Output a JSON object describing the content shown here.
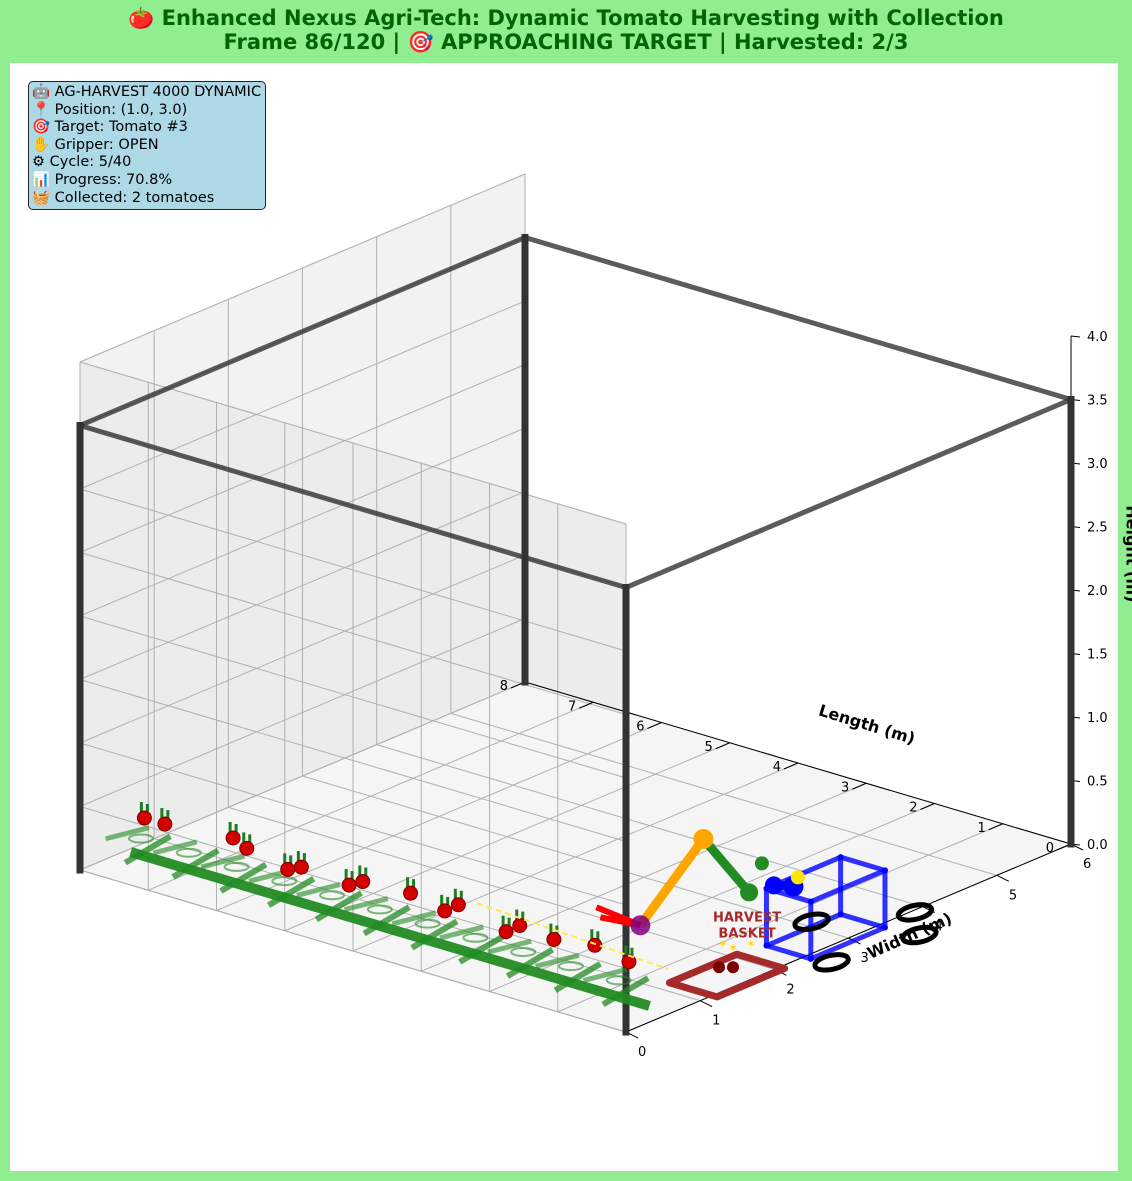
{
  "header": {
    "line1": "🍅 Enhanced Nexus Agri-Tech: Dynamic Tomato Harvesting with Collection",
    "line2": "Frame 86/120 | 🎯 APPROACHING TARGET | Harvested: 2/3"
  },
  "status_box": {
    "lines": [
      "🤖 AG-HARVEST 4000 DYNAMIC",
      "📍 Position: (1.0, 3.0)",
      "🎯 Target: Tomato #3",
      "✋ Gripper: OPEN",
      "⚙ Cycle: 5/40",
      "📊 Progress: 70.8%",
      "🧺 Collected: 2 tomatoes"
    ]
  },
  "chart_data": {
    "type": "scatter3d",
    "xlabel": "Length (m)",
    "ylabel": "Width (m)",
    "zlabel": "Height (m)",
    "xlim": [
      0,
      8
    ],
    "ylim": [
      0,
      6
    ],
    "zlim": [
      0,
      4
    ],
    "x_ticks": [
      "0",
      "1",
      "2",
      "3",
      "4",
      "5",
      "6",
      "7",
      "8"
    ],
    "y_ticks": [
      "0",
      "1",
      "2",
      "3",
      "4",
      "5",
      "6"
    ],
    "z_ticks": [
      "0.0",
      "0.5",
      "1.0",
      "1.5",
      "2.0",
      "2.5",
      "3.0",
      "3.5",
      "4.0"
    ],
    "grid": true,
    "greenhouse_frame": {
      "length": 8,
      "width": 6,
      "height": 3.5,
      "color": "#333333"
    },
    "plant_row": {
      "x_start": 0.2,
      "x_end": 7.8,
      "y": 0.5,
      "color": "#228b22"
    },
    "tomatoes": [
      {
        "x": 0.5,
        "y": 0.5,
        "z": 0.35
      },
      {
        "x": 1.0,
        "y": 0.5,
        "z": 0.4
      },
      {
        "x": 1.6,
        "y": 0.5,
        "z": 0.35
      },
      {
        "x": 2.1,
        "y": 0.5,
        "z": 0.38
      },
      {
        "x": 2.3,
        "y": 0.5,
        "z": 0.3
      },
      {
        "x": 3.0,
        "y": 0.5,
        "z": 0.4
      },
      {
        "x": 3.2,
        "y": 0.5,
        "z": 0.32
      },
      {
        "x": 3.7,
        "y": 0.5,
        "z": 0.38
      },
      {
        "x": 4.4,
        "y": 0.5,
        "z": 0.36
      },
      {
        "x": 4.6,
        "y": 0.5,
        "z": 0.3
      },
      {
        "x": 5.3,
        "y": 0.5,
        "z": 0.33
      },
      {
        "x": 5.5,
        "y": 0.5,
        "z": 0.28
      },
      {
        "x": 6.1,
        "y": 0.5,
        "z": 0.35
      },
      {
        "x": 6.3,
        "y": 0.5,
        "z": 0.4
      },
      {
        "x": 7.3,
        "y": 0.5,
        "z": 0.35
      },
      {
        "x": 7.6,
        "y": 0.5,
        "z": 0.35
      }
    ],
    "robot": {
      "position": [
        1.0,
        3.0
      ],
      "body_color": "#0000ff",
      "wheel_color": "#000000",
      "arm_colors": [
        "#228b22",
        "#ffa500"
      ],
      "gripper_color": "#ff0000",
      "target_color": "#800080"
    },
    "basket": {
      "label_line1": "HARVEST",
      "label_line2": "BASKET",
      "x": 0.15,
      "y": 1.5,
      "color": "#a52a2a",
      "collected": 2
    }
  }
}
